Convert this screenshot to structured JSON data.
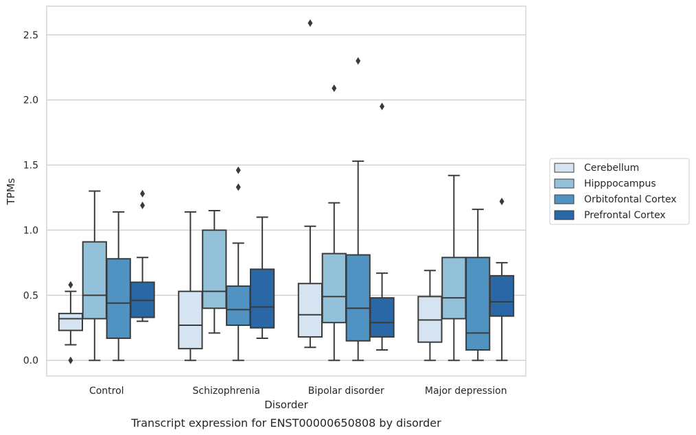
{
  "chart_data": {
    "type": "box",
    "caption": "Transcript expression for ENST00000650808 by disorder",
    "xlabel": "Disorder",
    "ylabel": "TPMs",
    "ylim": [
      -0.12,
      2.72
    ],
    "yticks": [
      "0.0",
      "0.5",
      "1.0",
      "1.5",
      "2.0",
      "2.5"
    ],
    "grid": "horizontal",
    "legend_position": "right",
    "categories": [
      "Control",
      "Schizophrenia",
      "Bipolar disorder",
      "Major depression"
    ],
    "series": [
      {
        "name": "Cerebellum",
        "color": "#d6e3f1",
        "boxes": [
          {
            "whislo": 0.12,
            "q1": 0.23,
            "med": 0.32,
            "q3": 0.36,
            "whishi": 0.53,
            "fliers": [
              0.58,
              0.0
            ]
          },
          {
            "whislo": 0.0,
            "q1": 0.09,
            "med": 0.27,
            "q3": 0.53,
            "whishi": 1.14,
            "fliers": []
          },
          {
            "whislo": 0.1,
            "q1": 0.18,
            "med": 0.35,
            "q3": 0.59,
            "whishi": 1.03,
            "fliers": [
              2.59
            ]
          },
          {
            "whislo": 0.0,
            "q1": 0.14,
            "med": 0.31,
            "q3": 0.49,
            "whishi": 0.69,
            "fliers": []
          }
        ]
      },
      {
        "name": "Hipppocampus",
        "color": "#94c1da",
        "boxes": [
          {
            "whislo": 0.0,
            "q1": 0.32,
            "med": 0.5,
            "q3": 0.91,
            "whishi": 1.3,
            "fliers": []
          },
          {
            "whislo": 0.21,
            "q1": 0.4,
            "med": 0.53,
            "q3": 1.0,
            "whishi": 1.15,
            "fliers": []
          },
          {
            "whislo": 0.0,
            "q1": 0.29,
            "med": 0.49,
            "q3": 0.82,
            "whishi": 1.21,
            "fliers": [
              2.09
            ]
          },
          {
            "whislo": 0.0,
            "q1": 0.32,
            "med": 0.48,
            "q3": 0.79,
            "whishi": 1.42,
            "fliers": []
          }
        ]
      },
      {
        "name": "Orbitofontal Cortex",
        "color": "#5093c2",
        "boxes": [
          {
            "whislo": 0.0,
            "q1": 0.17,
            "med": 0.44,
            "q3": 0.78,
            "whishi": 1.14,
            "fliers": []
          },
          {
            "whislo": 0.0,
            "q1": 0.27,
            "med": 0.39,
            "q3": 0.57,
            "whishi": 0.9,
            "fliers": [
              1.46,
              1.33
            ]
          },
          {
            "whislo": 0.0,
            "q1": 0.15,
            "med": 0.4,
            "q3": 0.81,
            "whishi": 1.53,
            "fliers": [
              2.3
            ]
          },
          {
            "whislo": 0.0,
            "q1": 0.08,
            "med": 0.21,
            "q3": 0.79,
            "whishi": 1.16,
            "fliers": []
          }
        ]
      },
      {
        "name": "Prefrontal Cortex",
        "color": "#2967a6",
        "boxes": [
          {
            "whislo": 0.3,
            "q1": 0.33,
            "med": 0.46,
            "q3": 0.6,
            "whishi": 0.79,
            "fliers": [
              1.28,
              1.19
            ]
          },
          {
            "whislo": 0.17,
            "q1": 0.25,
            "med": 0.41,
            "q3": 0.7,
            "whishi": 1.1,
            "fliers": []
          },
          {
            "whislo": 0.08,
            "q1": 0.18,
            "med": 0.29,
            "q3": 0.48,
            "whishi": 0.67,
            "fliers": [
              1.95
            ]
          },
          {
            "whislo": 0.0,
            "q1": 0.34,
            "med": 0.45,
            "q3": 0.65,
            "whishi": 0.75,
            "fliers": [
              1.22
            ]
          }
        ]
      }
    ]
  }
}
